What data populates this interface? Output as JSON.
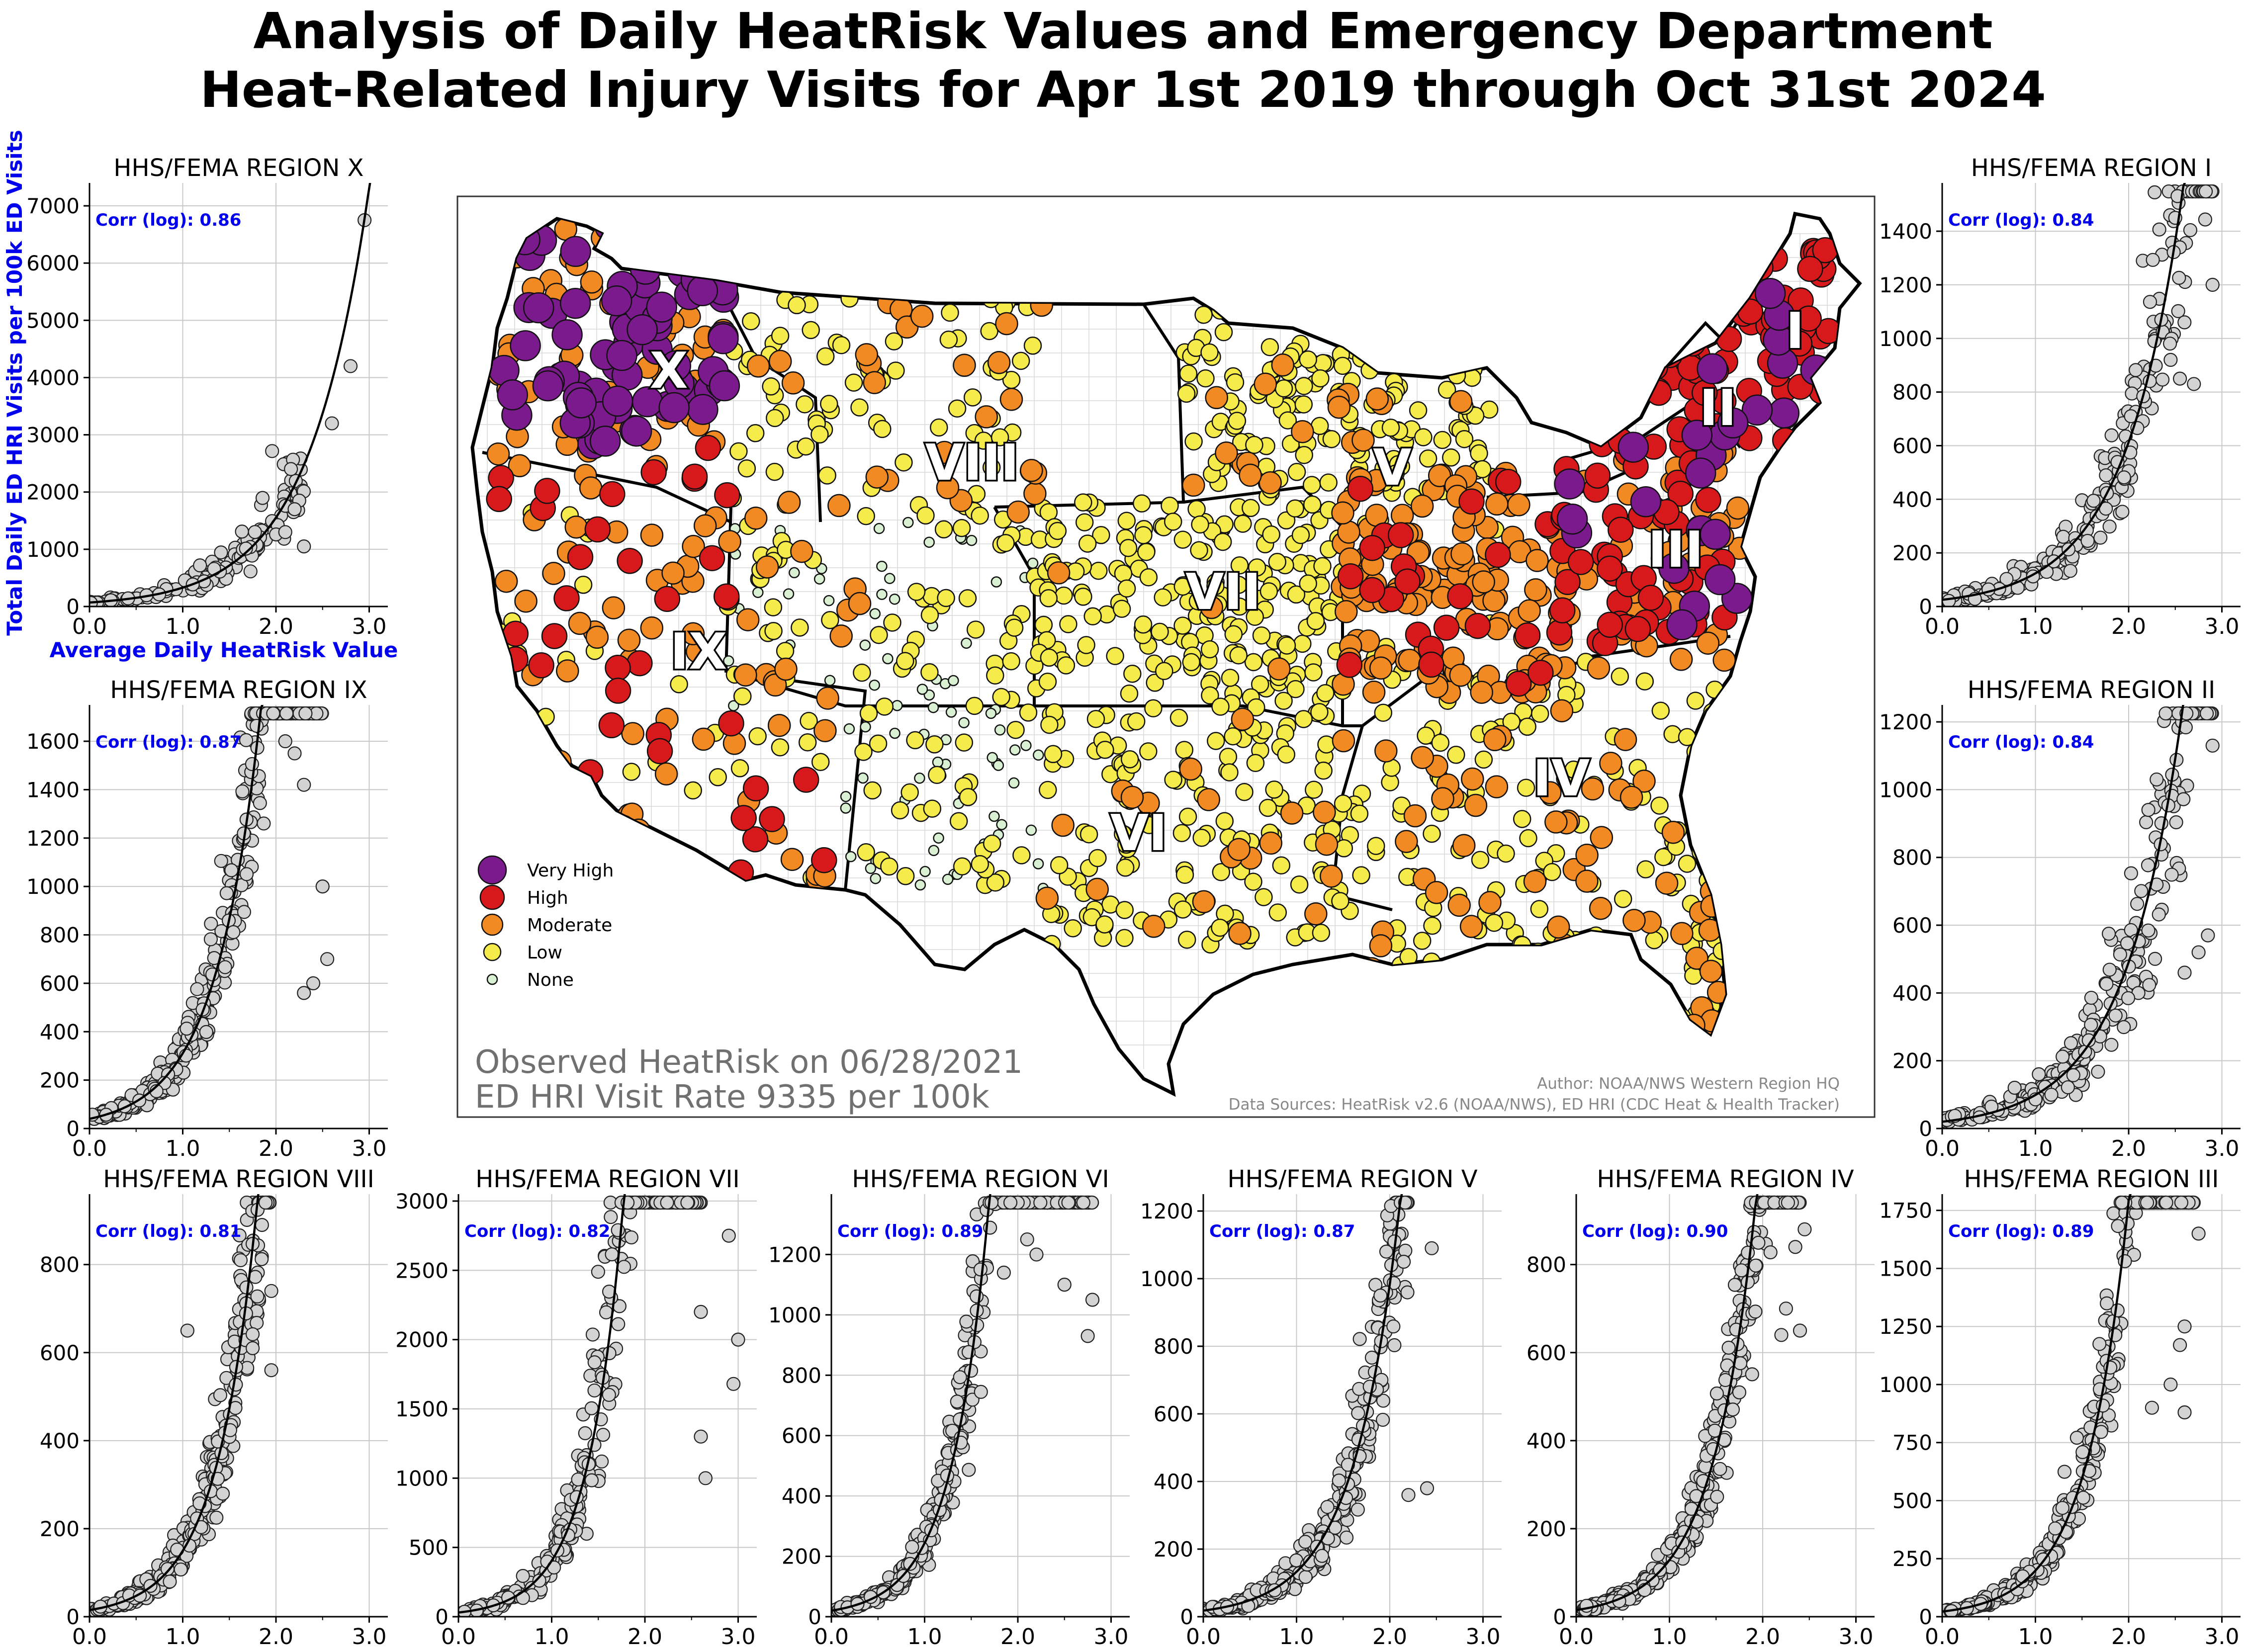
{
  "title": {
    "line1": "Analysis of Daily HeatRisk Values and Emergency Department",
    "line2": "Heat-Related Injury Visits for Apr 1st 2019 through Oct 31st 2024"
  },
  "axis_labels": {
    "ylabel": "Total Daily ED HRI Visits per 100k ED Visits",
    "xlabel": "Average Daily HeatRisk Value"
  },
  "map": {
    "observed_line1": "Observed HeatRisk on 06/28/2021",
    "observed_line2": "ED HRI Visit Rate 9335 per 100k",
    "author": "Author: NOAA/NWS Western Region HQ",
    "sources": "Data Sources: HeatRisk v2.6 (NOAA/NWS), ED HRI (CDC Heat & Health Tracker)",
    "legend": [
      {
        "label": "Very High",
        "color": "#7b1a8c"
      },
      {
        "label": "High",
        "color": "#d7191c"
      },
      {
        "label": "Moderate",
        "color": "#f28a24"
      },
      {
        "label": "Low",
        "color": "#f5ec4b"
      },
      {
        "label": "None",
        "color": "#d9f0d3"
      }
    ],
    "region_labels": [
      {
        "id": "x",
        "text": "X"
      },
      {
        "id": "ix",
        "text": "IX"
      },
      {
        "id": "viii",
        "text": "VIII"
      },
      {
        "id": "vii",
        "text": "VII"
      },
      {
        "id": "vi",
        "text": "VI"
      },
      {
        "id": "v",
        "text": "V"
      },
      {
        "id": "iv",
        "text": "IV"
      },
      {
        "id": "iii",
        "text": "III"
      },
      {
        "id": "ii",
        "text": "II"
      },
      {
        "id": "i",
        "text": "I"
      }
    ]
  },
  "chart_data": [
    {
      "type": "scatter",
      "title": "HHS/FEMA REGION X",
      "corr_label": "Corr (log): 0.86",
      "xlim": [
        0,
        3.2
      ],
      "ylim": [
        0,
        7400
      ],
      "yticks": [
        0,
        1000,
        2000,
        3000,
        4000,
        5000,
        6000,
        7000
      ],
      "xticks": [
        0,
        1,
        2,
        3
      ],
      "xtick_labels": [
        "0.0",
        "1.0",
        "2.0",
        "3.0"
      ],
      "fit": {
        "a": 70,
        "b": 1.55
      },
      "outliers": [
        [
          2.95,
          6750
        ],
        [
          2.8,
          4200
        ],
        [
          2.6,
          3200
        ],
        [
          2.25,
          1850
        ],
        [
          2.2,
          1700
        ],
        [
          2.1,
          1300
        ],
        [
          2.3,
          1050
        ]
      ],
      "cloud": {
        "n": 150,
        "xmin": 0.0,
        "xmax": 2.3,
        "spread": 0.45
      }
    },
    {
      "type": "scatter",
      "title": "HHS/FEMA REGION IX",
      "corr_label": "Corr (log): 0.87",
      "xlim": [
        0,
        3.2
      ],
      "ylim": [
        0,
        1750
      ],
      "yticks": [
        0,
        200,
        400,
        600,
        800,
        1000,
        1200,
        1400,
        1600
      ],
      "xticks": [
        0,
        1,
        2,
        3
      ],
      "xtick_labels": [
        "0.0",
        "1.0",
        "2.0",
        "3.0"
      ],
      "fit": {
        "a": 40,
        "b": 2.05
      },
      "outliers": [
        [
          2.1,
          1600
        ],
        [
          2.2,
          1550
        ],
        [
          2.3,
          1420
        ],
        [
          2.5,
          1000
        ],
        [
          2.55,
          700
        ],
        [
          2.4,
          600
        ],
        [
          2.3,
          560
        ]
      ],
      "cloud": {
        "n": 420,
        "xmin": 0.0,
        "xmax": 2.5,
        "spread": 0.35
      }
    },
    {
      "type": "scatter",
      "title": "HHS/FEMA REGION VIII",
      "corr_label": "Corr (log): 0.81",
      "xlim": [
        0,
        3.2
      ],
      "ylim": [
        0,
        960
      ],
      "yticks": [
        0,
        200,
        400,
        600,
        800
      ],
      "xticks": [
        0,
        1,
        2,
        3
      ],
      "xtick_labels": [
        "0.0",
        "1.0",
        "2.0",
        "3.0"
      ],
      "fit": {
        "a": 15,
        "b": 2.3
      },
      "outliers": [
        [
          1.85,
          890
        ],
        [
          1.95,
          740
        ],
        [
          1.75,
          610
        ],
        [
          1.05,
          650
        ],
        [
          1.95,
          560
        ]
      ],
      "cloud": {
        "n": 320,
        "xmin": 0.0,
        "xmax": 1.95,
        "spread": 0.4
      }
    },
    {
      "type": "scatter",
      "title": "HHS/FEMA REGION VII",
      "corr_label": "Corr (log): 0.82",
      "xlim": [
        0,
        3.2
      ],
      "ylim": [
        0,
        3050
      ],
      "yticks": [
        0,
        500,
        1000,
        1500,
        2000,
        2500,
        3000
      ],
      "xticks": [
        0,
        1,
        2,
        3
      ],
      "xtick_labels": [
        "0.0",
        "1.0",
        "2.0",
        "3.0"
      ],
      "fit": {
        "a": 30,
        "b": 2.6
      },
      "outliers": [
        [
          2.9,
          2750
        ],
        [
          3.0,
          2000
        ],
        [
          2.95,
          1680
        ],
        [
          2.6,
          2200
        ],
        [
          2.6,
          1300
        ],
        [
          2.65,
          1000
        ]
      ],
      "cloud": {
        "n": 380,
        "xmin": 0.0,
        "xmax": 2.6,
        "spread": 0.45
      }
    },
    {
      "type": "scatter",
      "title": "HHS/FEMA REGION VI",
      "corr_label": "Corr (log): 0.89",
      "xlim": [
        0,
        3.2
      ],
      "ylim": [
        0,
        1400
      ],
      "yticks": [
        0,
        200,
        400,
        600,
        800,
        1000,
        1200
      ],
      "xticks": [
        0,
        1,
        2,
        3
      ],
      "xtick_labels": [
        "0.0",
        "1.0",
        "2.0",
        "3.0"
      ],
      "fit": {
        "a": 20,
        "b": 2.5
      },
      "outliers": [
        [
          2.1,
          1250
        ],
        [
          2.2,
          1200
        ],
        [
          2.5,
          1100
        ],
        [
          2.8,
          1050
        ],
        [
          2.75,
          930
        ],
        [
          1.85,
          1140
        ]
      ],
      "cloud": {
        "n": 460,
        "xmin": 0.0,
        "xmax": 2.8,
        "spread": 0.35
      }
    },
    {
      "type": "scatter",
      "title": "HHS/FEMA REGION V",
      "corr_label": "Corr (log): 0.87",
      "xlim": [
        0,
        3.2
      ],
      "ylim": [
        0,
        1250
      ],
      "yticks": [
        0,
        200,
        400,
        600,
        800,
        1000,
        1200
      ],
      "xticks": [
        0,
        1,
        2,
        3
      ],
      "xtick_labels": [
        "0.0",
        "1.0",
        "2.0",
        "3.0"
      ],
      "fit": {
        "a": 18,
        "b": 2.0
      },
      "outliers": [
        [
          2.1,
          1130
        ],
        [
          2.05,
          1110
        ],
        [
          2.45,
          1090
        ],
        [
          2.15,
          1050
        ],
        [
          1.9,
          950
        ],
        [
          2.4,
          380
        ],
        [
          2.2,
          360
        ]
      ],
      "cloud": {
        "n": 360,
        "xmin": 0.0,
        "xmax": 2.2,
        "spread": 0.4
      }
    },
    {
      "type": "scatter",
      "title": "HHS/FEMA REGION IV",
      "corr_label": "Corr (log): 0.90",
      "xlim": [
        0,
        3.2
      ],
      "ylim": [
        0,
        960
      ],
      "yticks": [
        0,
        200,
        400,
        600,
        800
      ],
      "xticks": [
        0,
        1,
        2,
        3
      ],
      "xtick_labels": [
        "0.0",
        "1.0",
        "2.0",
        "3.0"
      ],
      "fit": {
        "a": 15,
        "b": 2.15
      },
      "outliers": [
        [
          2.45,
          880
        ],
        [
          2.35,
          840
        ],
        [
          2.25,
          700
        ],
        [
          2.4,
          650
        ],
        [
          2.2,
          640
        ]
      ],
      "cloud": {
        "n": 440,
        "xmin": 0.0,
        "xmax": 2.4,
        "spread": 0.35
      }
    },
    {
      "type": "scatter",
      "title": "HHS/FEMA REGION III",
      "corr_label": "Corr (log): 0.89",
      "xlim": [
        0,
        3.2
      ],
      "ylim": [
        0,
        1820
      ],
      "yticks": [
        0,
        250,
        500,
        750,
        1000,
        1250,
        1500,
        1750
      ],
      "xticks": [
        0,
        1,
        2,
        3
      ],
      "xtick_labels": [
        "0.0",
        "1.0",
        "2.0",
        "3.0"
      ],
      "fit": {
        "a": 22,
        "b": 2.2
      },
      "outliers": [
        [
          2.75,
          1650
        ],
        [
          2.6,
          1250
        ],
        [
          2.55,
          1170
        ],
        [
          2.45,
          1000
        ],
        [
          2.25,
          900
        ],
        [
          2.6,
          880
        ]
      ],
      "cloud": {
        "n": 380,
        "xmin": 0.0,
        "xmax": 2.7,
        "spread": 0.35
      }
    },
    {
      "type": "scatter",
      "title": "HHS/FEMA REGION II",
      "corr_label": "Corr (log): 0.84",
      "xlim": [
        0,
        3.2
      ],
      "ylim": [
        0,
        1250
      ],
      "yticks": [
        0,
        200,
        400,
        600,
        800,
        1000,
        1200
      ],
      "xticks": [
        0,
        1,
        2,
        3
      ],
      "xtick_labels": [
        "0.0",
        "1.0",
        "2.0",
        "3.0"
      ],
      "fit": {
        "a": 20,
        "b": 1.6
      },
      "outliers": [
        [
          2.9,
          1130
        ],
        [
          2.3,
          1030
        ],
        [
          2.3,
          720
        ],
        [
          2.85,
          570
        ],
        [
          2.75,
          520
        ],
        [
          2.6,
          460
        ]
      ],
      "cloud": {
        "n": 280,
        "xmin": 0.0,
        "xmax": 2.9,
        "spread": 0.5
      }
    },
    {
      "type": "scatter",
      "title": "HHS/FEMA REGION I",
      "corr_label": "Corr (log): 0.84",
      "xlim": [
        0,
        3.2
      ],
      "ylim": [
        0,
        1580
      ],
      "yticks": [
        0,
        200,
        400,
        600,
        800,
        1000,
        1200,
        1400
      ],
      "xticks": [
        0,
        1,
        2,
        3
      ],
      "xtick_labels": [
        "0.0",
        "1.0",
        "2.0",
        "3.0"
      ],
      "fit": {
        "a": 25,
        "b": 1.6
      },
      "outliers": [
        [
          2.5,
          1450
        ],
        [
          2.9,
          1200
        ],
        [
          2.35,
          1070
        ],
        [
          2.45,
          920
        ],
        [
          2.55,
          850
        ],
        [
          2.7,
          830
        ]
      ],
      "cloud": {
        "n": 260,
        "xmin": 0.0,
        "xmax": 2.9,
        "spread": 0.45
      }
    }
  ]
}
